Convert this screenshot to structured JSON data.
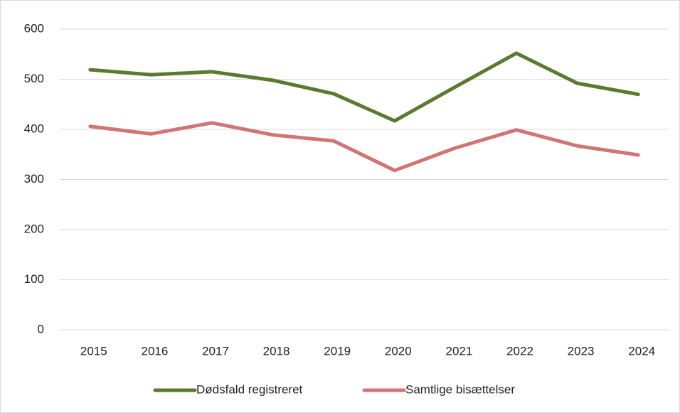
{
  "chart_data": {
    "type": "line",
    "categories": [
      "2015",
      "2016",
      "2017",
      "2018",
      "2019",
      "2020",
      "2021",
      "2022",
      "2023",
      "2024"
    ],
    "series": [
      {
        "name": "Dødsfald registreret",
        "color": "#5b7a2f",
        "values": [
          519,
          509,
          515,
          498,
          471,
          417,
          485,
          552,
          492,
          470
        ]
      },
      {
        "name": "Samtlige bisættelser",
        "color": "#d07575",
        "values": [
          406,
          391,
          413,
          389,
          377,
          318,
          363,
          399,
          367,
          349
        ]
      }
    ],
    "ylim": [
      0,
      600
    ],
    "yticks": [
      0,
      100,
      200,
      300,
      400,
      500,
      600
    ],
    "grid": true,
    "legend": "bottom"
  }
}
